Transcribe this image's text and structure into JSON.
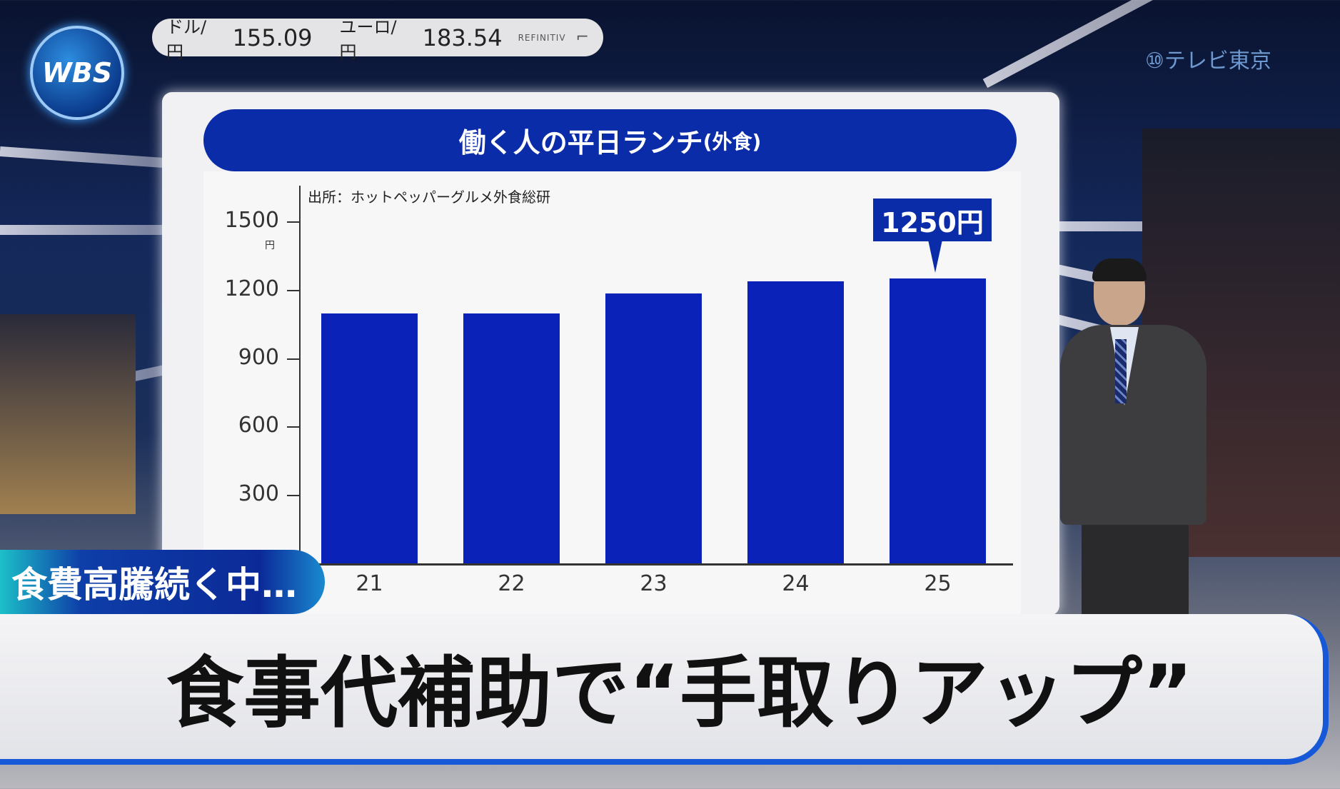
{
  "ticker": {
    "usd_label": "ドル/円",
    "usd_value": "155.09",
    "eur_label": "ユーロ/円",
    "eur_value": "183.54",
    "source": "REFINITIV"
  },
  "logo": {
    "text": "WBS"
  },
  "channel_logo": {
    "text": "テレビ東京"
  },
  "colors": {
    "bar": "#0b22b8",
    "title_bar": "#0b2ca8",
    "accent_line": "#1658d8"
  },
  "chart_data": {
    "type": "bar",
    "title": "働く人の平日ランチ",
    "title_suffix": "(外食)",
    "source": "出所：ホットペッパーグルメ外食総研",
    "categories": [
      "21",
      "22",
      "23",
      "24",
      "25"
    ],
    "values": [
      1095,
      1095,
      1185,
      1237,
      1250
    ],
    "ylim": [
      0,
      1500
    ],
    "yticks": [
      "300",
      "600",
      "900",
      "1200",
      "1500"
    ],
    "yunit": "円",
    "annotation": "1250円",
    "grid": false
  },
  "caption": {
    "sub": "食費高騰続く中…",
    "main": "食事代補助で“手取りアップ”"
  }
}
